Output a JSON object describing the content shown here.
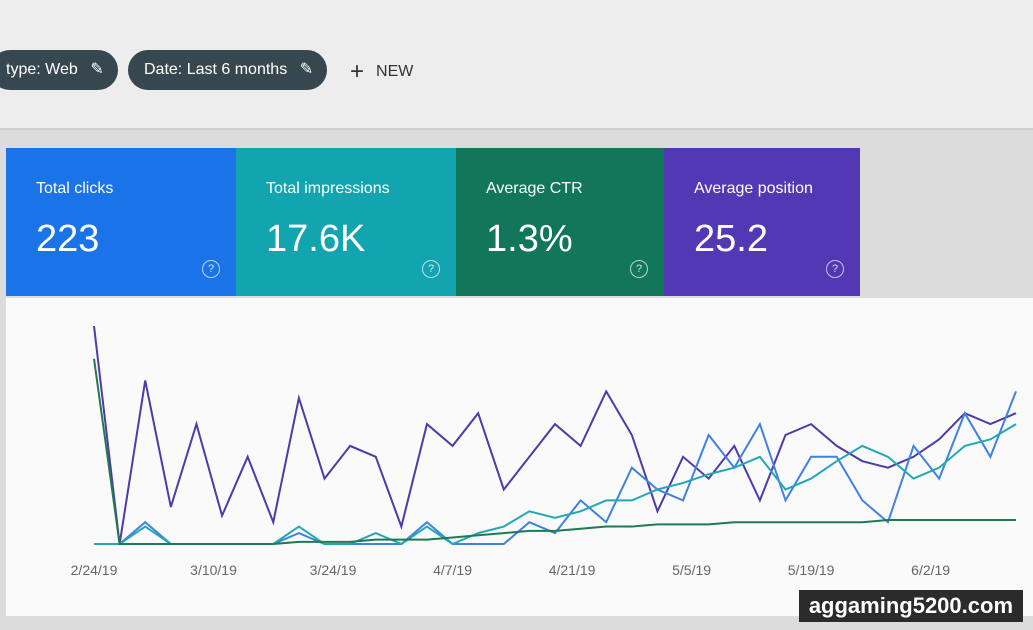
{
  "toolbar": {
    "chips": [
      "type: Web",
      "Date: Last 6 months"
    ],
    "new_button": "NEW"
  },
  "cards": [
    {
      "label": "Total clicks",
      "value": "223",
      "color": "#1a73e8"
    },
    {
      "label": "Total impressions",
      "value": "17.6K",
      "color": "#12a4af"
    },
    {
      "label": "Average CTR",
      "value": "1.3%",
      "color": "#12775a"
    },
    {
      "label": "Average position",
      "value": "25.2",
      "color": "#5238b2"
    }
  ],
  "chart_data": {
    "type": "line",
    "x": [
      0,
      3,
      6,
      9,
      12,
      15,
      18,
      21,
      24,
      27,
      30,
      33,
      36,
      39,
      42,
      45,
      48,
      51,
      54,
      57,
      60,
      63,
      66,
      69,
      72,
      75,
      78,
      81,
      84,
      87,
      90,
      93,
      96,
      99,
      102,
      105,
      108
    ],
    "xlim": [
      0,
      108
    ],
    "xticks": [
      {
        "value": 0,
        "label": "2/24/19"
      },
      {
        "value": 14,
        "label": "3/10/19"
      },
      {
        "value": 28,
        "label": "3/24/19"
      },
      {
        "value": 42,
        "label": "4/7/19"
      },
      {
        "value": 56,
        "label": "4/21/19"
      },
      {
        "value": 70,
        "label": "5/5/19"
      },
      {
        "value": 84,
        "label": "5/19/19"
      },
      {
        "value": 98,
        "label": "6/2/19"
      }
    ],
    "ylim": [
      0,
      100
    ],
    "series": [
      {
        "color": "#4f3aa8",
        "values": [
          100,
          0,
          75,
          17,
          55,
          13,
          40,
          10,
          67,
          30,
          45,
          40,
          8,
          55,
          45,
          60,
          25,
          40,
          55,
          45,
          70,
          50,
          15,
          40,
          30,
          45,
          20,
          50,
          55,
          45,
          38,
          35,
          40,
          48,
          60,
          55,
          60
        ]
      },
      {
        "color": "#3f82e0",
        "values": [
          0,
          0,
          10,
          0,
          0,
          0,
          0,
          0,
          5,
          0,
          0,
          0,
          0,
          10,
          0,
          0,
          0,
          10,
          5,
          20,
          10,
          35,
          25,
          20,
          50,
          35,
          55,
          20,
          40,
          40,
          20,
          10,
          45,
          30,
          60,
          40,
          70
        ]
      },
      {
        "color": "#23a7b5",
        "values": [
          0,
          0,
          8,
          0,
          0,
          0,
          0,
          0,
          8,
          0,
          0,
          5,
          0,
          8,
          0,
          5,
          8,
          15,
          12,
          15,
          20,
          20,
          25,
          28,
          32,
          35,
          40,
          25,
          30,
          38,
          45,
          40,
          30,
          35,
          45,
          48,
          55
        ]
      },
      {
        "color": "#1f7a52",
        "values": [
          85,
          0,
          0,
          0,
          0,
          0,
          0,
          0,
          1,
          1,
          1,
          2,
          2,
          2,
          3,
          4,
          5,
          6,
          6,
          7,
          8,
          8,
          9,
          9,
          9,
          10,
          10,
          10,
          10,
          10,
          10,
          11,
          11,
          11,
          11,
          11,
          11
        ]
      }
    ]
  },
  "watermark": "aggaming5200.com"
}
